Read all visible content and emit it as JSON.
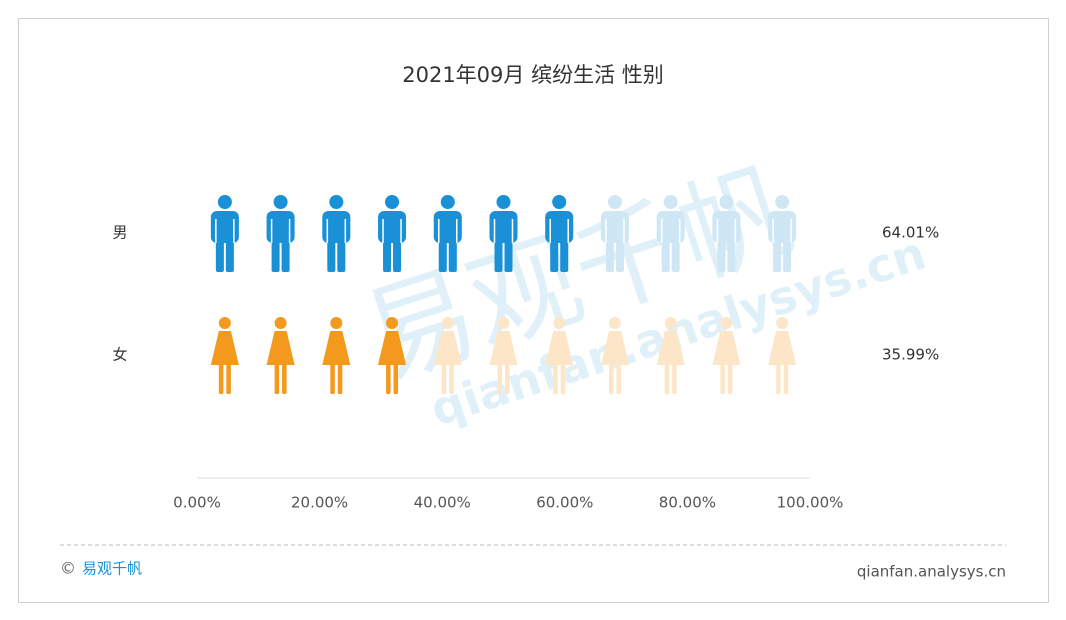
{
  "chart_data": {
    "type": "pictogram",
    "title": "2021年09月 缤纷生活 性别",
    "categories": [
      "男",
      "女"
    ],
    "values": [
      64.01,
      35.99
    ],
    "value_labels": [
      "64.01%",
      "35.99%"
    ],
    "icons": [
      "male",
      "female"
    ],
    "icon_count": 11,
    "colors": [
      "#1a90d6",
      "#f39a1e"
    ],
    "empty_colors": [
      "#cfe7f5",
      "#fde6c8"
    ],
    "xlim": [
      0,
      100
    ],
    "xticks": [
      {
        "value": 0,
        "label": "0.00%"
      },
      {
        "value": 20,
        "label": "20.00%"
      },
      {
        "value": 40,
        "label": "40.00%"
      },
      {
        "value": 60,
        "label": "60.00%"
      },
      {
        "value": 80,
        "label": "80.00%"
      },
      {
        "value": 100,
        "label": "100.00%"
      }
    ]
  },
  "watermark": {
    "logo": "易观千帆",
    "url": "qianfan.analysys.cn"
  },
  "footer": {
    "symbol": "©",
    "brand": "易观千帆",
    "url": "qianfan.analysys.cn"
  }
}
